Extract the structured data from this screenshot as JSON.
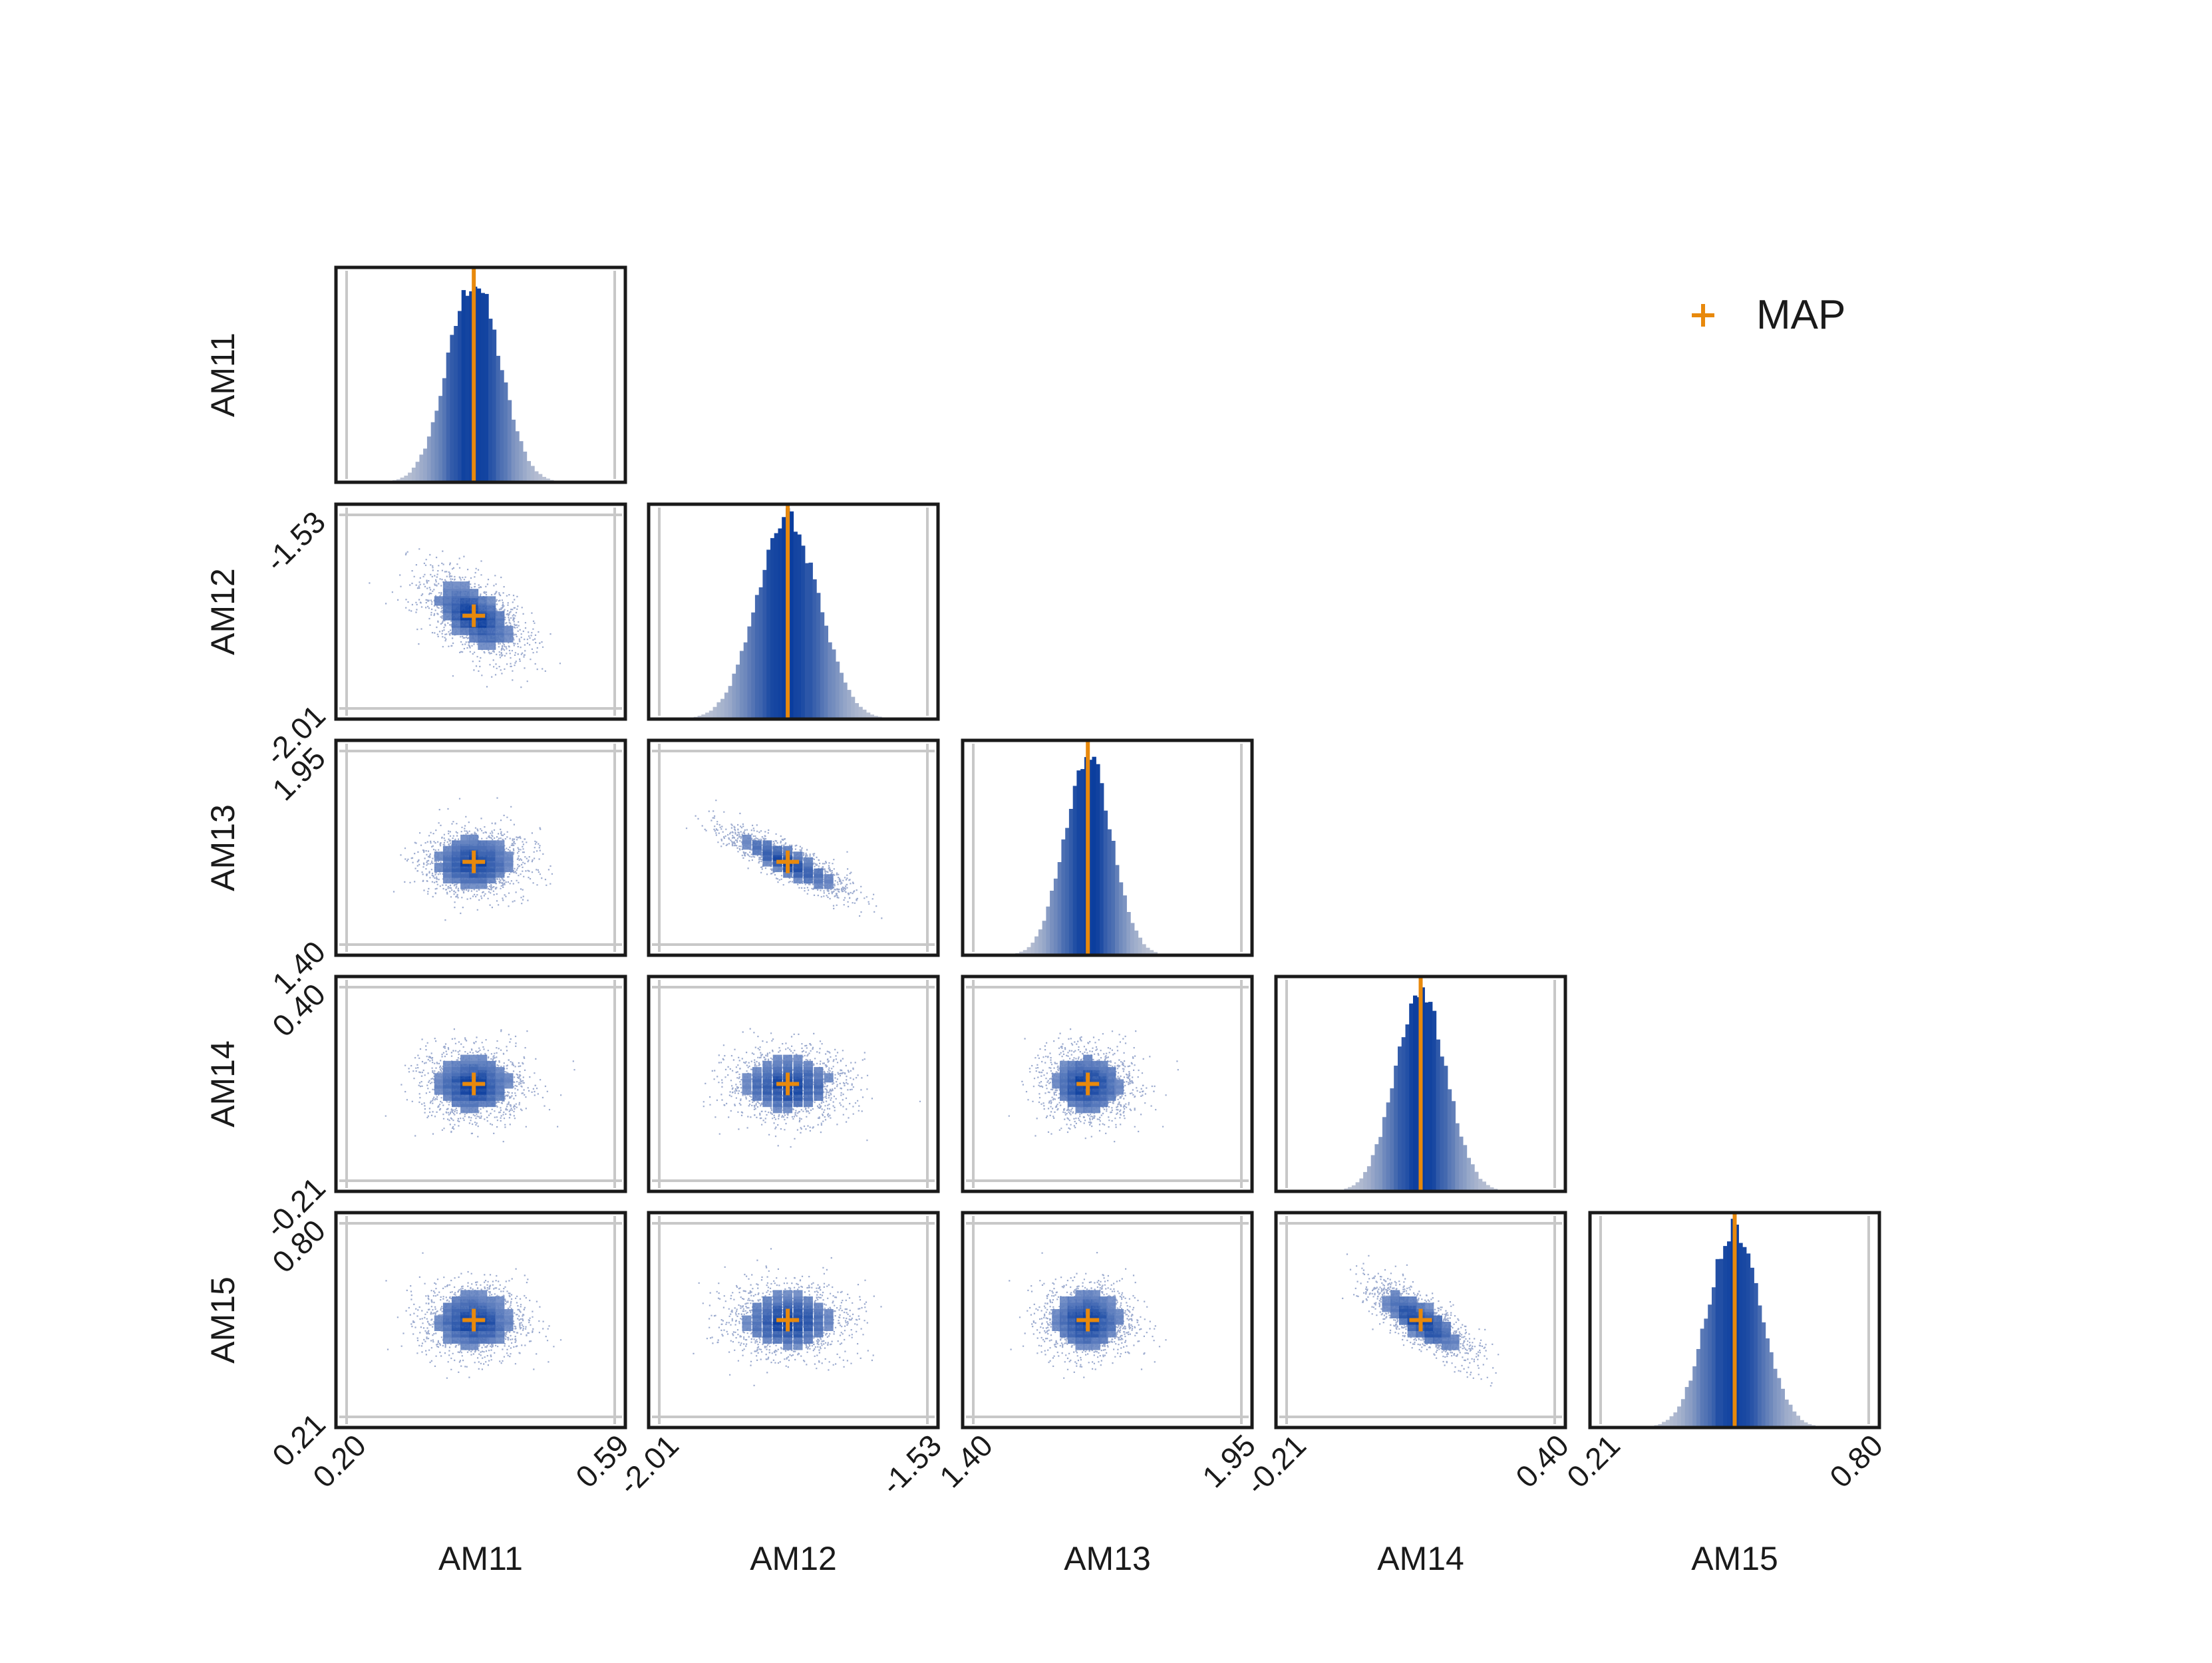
{
  "chart_data": {
    "type": "corner",
    "parameters": [
      "AM11",
      "AM12",
      "AM13",
      "AM14",
      "AM15"
    ],
    "ranges": [
      [
        0.2,
        0.59
      ],
      [
        -2.01,
        -1.53
      ],
      [
        1.4,
        1.95
      ],
      [
        -0.21,
        0.4
      ],
      [
        0.21,
        0.8
      ]
    ],
    "tick_labels": [
      [
        "0.20",
        "0.59"
      ],
      [
        "-2.01",
        "-1.53"
      ],
      [
        "1.40",
        "1.95"
      ],
      [
        "-0.21",
        "0.40"
      ],
      [
        "0.21",
        "0.80"
      ]
    ],
    "map": [
      0.385,
      -1.78,
      1.635,
      0.095,
      0.505
    ],
    "std": [
      0.038,
      0.055,
      0.048,
      0.058,
      0.058
    ],
    "correlations": [
      [
        1.0,
        -0.55,
        0.0,
        0.0,
        0.0
      ],
      [
        -0.55,
        1.0,
        -0.85,
        0.0,
        0.0
      ],
      [
        0.0,
        -0.85,
        1.0,
        0.0,
        0.0
      ],
      [
        0.0,
        0.0,
        0.0,
        1.0,
        -0.75
      ],
      [
        0.0,
        0.0,
        0.0,
        -0.75,
        1.0
      ]
    ],
    "legend": {
      "label": "MAP",
      "position": "top-right"
    },
    "colors": {
      "histogram_high": "#0a3d9e",
      "histogram_low": "#c4c9d6",
      "map_marker": "#e8890c",
      "frame": "#1a1a1a",
      "range_line": "#c8c8c8"
    }
  }
}
